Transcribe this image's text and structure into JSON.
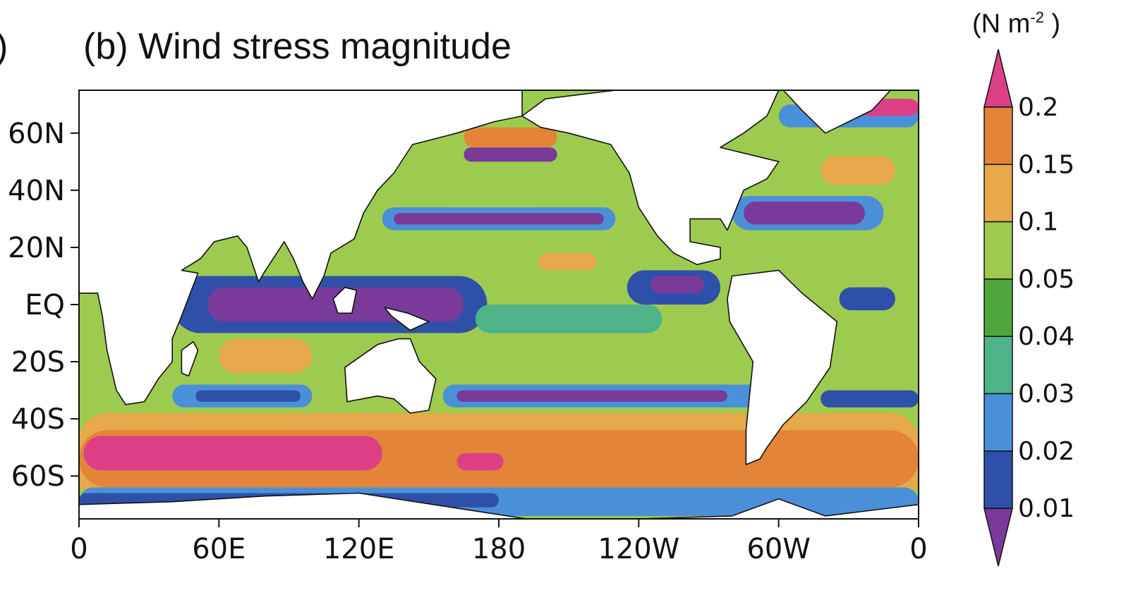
{
  "panel_fragment": ")",
  "title": "(b) Wind stress magnitude",
  "units": {
    "prefix": "(N m",
    "exponent": "-2",
    "suffix": " )"
  },
  "map": {
    "projection": "cylindrical-equidistant",
    "lon_range": [
      0,
      360
    ],
    "lat_range": [
      -75,
      75
    ],
    "lat_ticks": [
      {
        "lat": 60,
        "label": "60N"
      },
      {
        "lat": 40,
        "label": "40N"
      },
      {
        "lat": 20,
        "label": "20N"
      },
      {
        "lat": 0,
        "label": "EQ"
      },
      {
        "lat": -20,
        "label": "20S"
      },
      {
        "lat": -40,
        "label": "40S"
      },
      {
        "lat": -60,
        "label": "60S"
      }
    ],
    "lon_ticks": [
      {
        "lon": 0,
        "label": "0"
      },
      {
        "lon": 60,
        "label": "60E"
      },
      {
        "lon": 120,
        "label": "120E"
      },
      {
        "lon": 180,
        "label": "180"
      },
      {
        "lon": 240,
        "label": "120W"
      },
      {
        "lon": 300,
        "label": "60W"
      },
      {
        "lon": 360,
        "label": "0"
      }
    ],
    "land_color": "#ffffff",
    "ocean_base_color": "#9dcb50"
  },
  "colorbar": {
    "levels": [
      "0.01",
      "0.02",
      "0.03",
      "0.04",
      "0.05",
      "0.1",
      "0.15",
      "0.2"
    ],
    "colors": [
      "#7a3a9a",
      "#2f50a8",
      "#4a90d8",
      "#4fb38a",
      "#4ea63c",
      "#9dcb50",
      "#e7a94a",
      "#e38439",
      "#dc3f86"
    ],
    "extend": "both"
  },
  "bands": [
    {
      "lat_top": -38,
      "lat_bot": -70,
      "lon_start": 0,
      "lon_end": 360,
      "color": "#e7a94a"
    },
    {
      "lat_top": -44,
      "lat_bot": -64,
      "lon_start": 0,
      "lon_end": 360,
      "color": "#e38439"
    },
    {
      "lat_top": -46,
      "lat_bot": -58,
      "lon_start": 2,
      "lon_end": 130,
      "color": "#dc3f86"
    },
    {
      "lat_top": -52,
      "lat_bot": -58,
      "lon_start": 162,
      "lon_end": 182,
      "color": "#dc3f86"
    },
    {
      "lat_top": -64,
      "lat_bot": -74,
      "lon_start": 0,
      "lon_end": 360,
      "color": "#4a90d8"
    },
    {
      "lat_top": -66,
      "lat_bot": -71,
      "lon_start": 0,
      "lon_end": 180,
      "color": "#2f50a8"
    },
    {
      "lat_top": -28,
      "lat_bot": -36,
      "lon_start": 156,
      "lon_end": 300,
      "color": "#4a90d8"
    },
    {
      "lat_top": -30,
      "lat_bot": -34,
      "lon_start": 162,
      "lon_end": 278,
      "color": "#7a3a9a"
    },
    {
      "lat_top": -28,
      "lat_bot": -36,
      "lon_start": 40,
      "lon_end": 100,
      "color": "#4a90d8"
    },
    {
      "lat_top": -30,
      "lat_bot": -34,
      "lon_start": 50,
      "lon_end": 95,
      "color": "#2f50a8"
    },
    {
      "lat_top": -30,
      "lat_bot": -36,
      "lon_start": 318,
      "lon_end": 360,
      "color": "#2f50a8"
    },
    {
      "lat_top": 34,
      "lat_bot": 26,
      "lon_start": 130,
      "lon_end": 230,
      "color": "#4a90d8"
    },
    {
      "lat_top": 32,
      "lat_bot": 28,
      "lon_start": 135,
      "lon_end": 225,
      "color": "#7a3a9a"
    },
    {
      "lat_top": 38,
      "lat_bot": 26,
      "lon_start": 280,
      "lon_end": 345,
      "color": "#4a90d8"
    },
    {
      "lat_top": 36,
      "lat_bot": 28,
      "lon_start": 285,
      "lon_end": 337,
      "color": "#7a3a9a"
    },
    {
      "lat_top": 52,
      "lat_bot": 42,
      "lon_start": 318,
      "lon_end": 350,
      "color": "#e7a94a"
    },
    {
      "lat_top": 10,
      "lat_bot": -10,
      "lon_start": 40,
      "lon_end": 175,
      "color": "#2f50a8"
    },
    {
      "lat_top": 6,
      "lat_bot": -6,
      "lon_start": 55,
      "lon_end": 165,
      "color": "#7a3a9a"
    },
    {
      "lat_top": 12,
      "lat_bot": 0,
      "lon_start": 235,
      "lon_end": 275,
      "color": "#2f50a8"
    },
    {
      "lat_top": 10,
      "lat_bot": 4,
      "lon_start": 245,
      "lon_end": 268,
      "color": "#7a3a9a"
    },
    {
      "lat_top": -12,
      "lat_bot": -24,
      "lon_start": 60,
      "lon_end": 100,
      "color": "#e7a94a"
    },
    {
      "lat_top": 18,
      "lat_bot": 12,
      "lon_start": 197,
      "lon_end": 222,
      "color": "#e7a94a"
    },
    {
      "lat_top": 6,
      "lat_bot": -2,
      "lon_start": 326,
      "lon_end": 350,
      "color": "#2f50a8"
    },
    {
      "lat_top": 0,
      "lat_bot": -10,
      "lon_start": 170,
      "lon_end": 250,
      "color": "#4fb38a"
    },
    {
      "lat_top": 70,
      "lat_bot": 62,
      "lon_start": 300,
      "lon_end": 360,
      "color": "#4a90d8"
    },
    {
      "lat_top": 72,
      "lat_bot": 66,
      "lon_start": 335,
      "lon_end": 360,
      "color": "#dc3f86"
    },
    {
      "lat_top": 75,
      "lat_bot": 70,
      "lon_start": 10,
      "lon_end": 40,
      "color": "#dc3f86"
    },
    {
      "lat_top": 75,
      "lat_bot": 70,
      "lon_start": 150,
      "lon_end": 190,
      "color": "#7a3a9a"
    },
    {
      "lat_top": 55,
      "lat_bot": 50,
      "lon_start": 165,
      "lon_end": 205,
      "color": "#7a3a9a"
    },
    {
      "lat_top": 62,
      "lat_bot": 55,
      "lon_start": 165,
      "lon_end": 205,
      "color": "#e38439"
    }
  ],
  "land": [
    {
      "name": "europe-asia-africa-land",
      "points": [
        [
          -2,
          -36
        ],
        [
          0,
          -34
        ],
        [
          0,
          75
        ],
        [
          190,
          75
        ],
        [
          190,
          66
        ],
        [
          178,
          64
        ],
        [
          162,
          60
        ],
        [
          143,
          56
        ],
        [
          135,
          46
        ],
        [
          128,
          40
        ],
        [
          122,
          32
        ],
        [
          118,
          23
        ],
        [
          108,
          18
        ],
        [
          105,
          10
        ],
        [
          100,
          2
        ],
        [
          96,
          8
        ],
        [
          92,
          16
        ],
        [
          88,
          22
        ],
        [
          80,
          12
        ],
        [
          77,
          8
        ],
        [
          72,
          20
        ],
        [
          68,
          24
        ],
        [
          58,
          22
        ],
        [
          52,
          16
        ],
        [
          44,
          12
        ],
        [
          51,
          11
        ],
        [
          44,
          -4
        ],
        [
          40,
          -12
        ],
        [
          40,
          -20
        ],
        [
          34,
          -26
        ],
        [
          28,
          -34
        ],
        [
          20,
          -35
        ],
        [
          16,
          -30
        ],
        [
          12,
          -16
        ],
        [
          10,
          -4
        ],
        [
          8,
          4
        ],
        [
          -2,
          4
        ]
      ]
    },
    {
      "name": "madagascar-land",
      "points": [
        [
          44,
          -16
        ],
        [
          49,
          -13
        ],
        [
          51,
          -16
        ],
        [
          47,
          -25
        ],
        [
          44,
          -24
        ]
      ]
    },
    {
      "name": "north-america-land",
      "points": [
        [
          190,
          66
        ],
        [
          200,
          72
        ],
        [
          230,
          75
        ],
        [
          300,
          75
        ],
        [
          295,
          66
        ],
        [
          285,
          60
        ],
        [
          275,
          55
        ],
        [
          300,
          50
        ],
        [
          295,
          44
        ],
        [
          285,
          40
        ],
        [
          280,
          30
        ],
        [
          278,
          26
        ],
        [
          275,
          30
        ],
        [
          262,
          30
        ],
        [
          262,
          22
        ],
        [
          275,
          20
        ],
        [
          275,
          16
        ],
        [
          265,
          14
        ],
        [
          255,
          18
        ],
        [
          248,
          24
        ],
        [
          240,
          34
        ],
        [
          236,
          46
        ],
        [
          228,
          56
        ],
        [
          210,
          60
        ],
        [
          198,
          62
        ]
      ]
    },
    {
      "name": "south-america-land",
      "points": [
        [
          280,
          10
        ],
        [
          300,
          12
        ],
        [
          310,
          4
        ],
        [
          325,
          -6
        ],
        [
          322,
          -22
        ],
        [
          312,
          -34
        ],
        [
          302,
          -42
        ],
        [
          295,
          -50
        ],
        [
          292,
          -54
        ],
        [
          286,
          -56
        ],
        [
          286,
          -44
        ],
        [
          289,
          -20
        ],
        [
          279,
          -6
        ],
        [
          278,
          2
        ]
      ]
    },
    {
      "name": "australia-land",
      "points": [
        [
          114,
          -22
        ],
        [
          128,
          -14
        ],
        [
          137,
          -12
        ],
        [
          142,
          -12
        ],
        [
          146,
          -20
        ],
        [
          153,
          -26
        ],
        [
          150,
          -37
        ],
        [
          142,
          -38
        ],
        [
          135,
          -33
        ],
        [
          128,
          -32
        ],
        [
          115,
          -34
        ]
      ]
    },
    {
      "name": "greenland-land",
      "points": [
        [
          302,
          75
        ],
        [
          348,
          75
        ],
        [
          340,
          68
        ],
        [
          320,
          60
        ],
        [
          310,
          68
        ]
      ]
    },
    {
      "name": "antarctica-land",
      "points": [
        [
          0,
          -70
        ],
        [
          40,
          -69
        ],
        [
          80,
          -67
        ],
        [
          120,
          -66
        ],
        [
          160,
          -71
        ],
        [
          200,
          -76
        ],
        [
          280,
          -74
        ],
        [
          300,
          -68
        ],
        [
          320,
          -74
        ],
        [
          360,
          -70
        ],
        [
          360,
          -76
        ],
        [
          0,
          -76
        ]
      ]
    },
    {
      "name": "borneo-land",
      "points": [
        [
          109,
          2
        ],
        [
          114,
          6
        ],
        [
          119,
          5
        ],
        [
          117,
          -3
        ],
        [
          111,
          -3
        ]
      ]
    },
    {
      "name": "new-guinea-land",
      "points": [
        [
          131,
          -1
        ],
        [
          141,
          -3
        ],
        [
          150,
          -6
        ],
        [
          142,
          -9
        ],
        [
          134,
          -4
        ]
      ]
    }
  ]
}
